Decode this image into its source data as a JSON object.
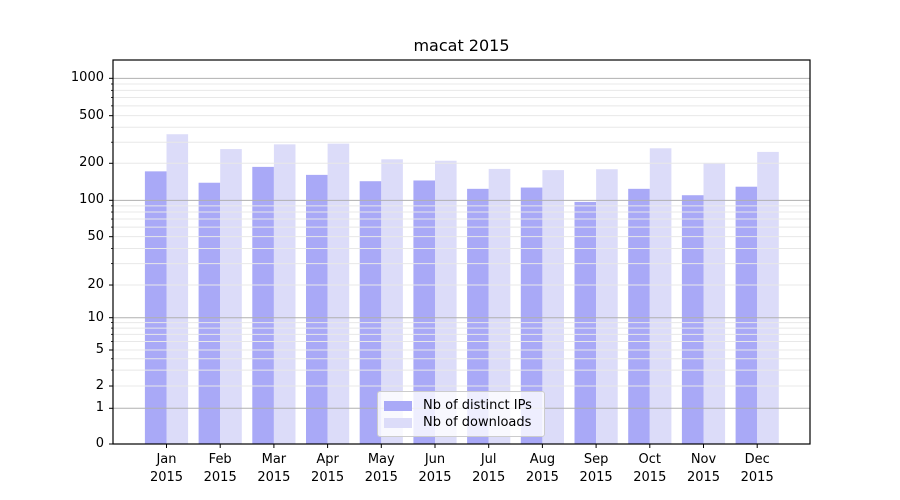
{
  "chart_data": {
    "type": "bar",
    "title": "macat 2015",
    "categories": [
      "Jan",
      "Feb",
      "Mar",
      "Apr",
      "May",
      "Jun",
      "Jul",
      "Aug",
      "Sep",
      "Oct",
      "Nov",
      "Dec"
    ],
    "category_year": "2015",
    "series": [
      {
        "name": "Nb of distinct IPs",
        "color": "#a9a9f7",
        "values": [
          172,
          139,
          187,
          161,
          143,
          145,
          124,
          127,
          97,
          124,
          110,
          129
        ]
      },
      {
        "name": "Nb of downloads",
        "color": "#dcdcf9",
        "values": [
          350,
          263,
          288,
          292,
          216,
          210,
          180,
          176,
          179,
          267,
          200,
          249
        ]
      }
    ],
    "xlabel": "",
    "ylabel": "",
    "yticks": [
      0,
      1,
      2,
      5,
      10,
      20,
      50,
      100,
      200,
      500,
      1000
    ],
    "ylim": [
      0,
      1400
    ],
    "yscale": "symlog",
    "grid": "horizontal, major decades darker, log minors faint, drawn above bars",
    "legend_position": "lower center",
    "colors": {
      "major_grid": "#b0b0b0",
      "minor_grid": "#e8e8e8",
      "spine": "#000000",
      "background": "#ffffff"
    }
  }
}
